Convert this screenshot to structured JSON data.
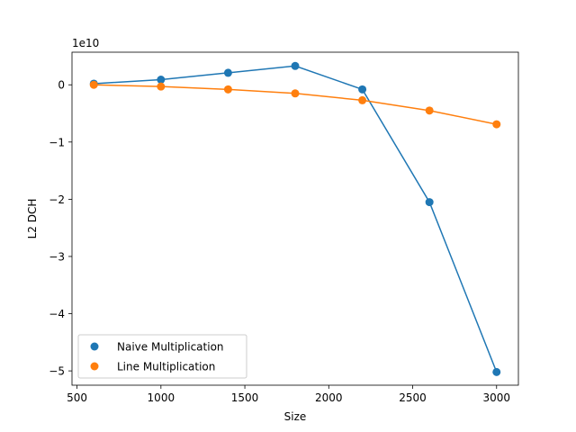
{
  "chart_data": {
    "type": "scatter",
    "title": "",
    "xlabel": "Size",
    "ylabel": "L2 DCH",
    "y_offset_label": "1e10",
    "y_scale_factor": 10000000000,
    "xlim": [
      470,
      3130
    ],
    "ylim": [
      -52500000000,
      5700000000
    ],
    "x_ticks": [
      500,
      1000,
      1500,
      2000,
      2500,
      3000
    ],
    "x_tick_labels": [
      "500",
      "1000",
      "1500",
      "2000",
      "2500",
      "3000"
    ],
    "y_ticks": [
      0,
      -10000000000,
      -20000000000,
      -30000000000,
      -40000000000,
      -50000000000
    ],
    "y_tick_labels": [
      "0",
      "−1",
      "−2",
      "−3",
      "−4",
      "−5"
    ],
    "grid": false,
    "legend_position": "lower-left",
    "x": [
      600,
      1000,
      1400,
      1800,
      2200,
      2600,
      3000
    ],
    "series": [
      {
        "name": "Naive Multiplication",
        "color": "#1f77b4",
        "values": [
          200000000,
          900000000,
          2100000000,
          3300000000,
          -800000000,
          -20500000000,
          -50200000000
        ]
      },
      {
        "name": "Line Multiplication",
        "color": "#ff7f0e",
        "values": [
          0,
          -300000000,
          -800000000,
          -1500000000,
          -2700000000,
          -4500000000,
          -6900000000
        ]
      }
    ]
  }
}
